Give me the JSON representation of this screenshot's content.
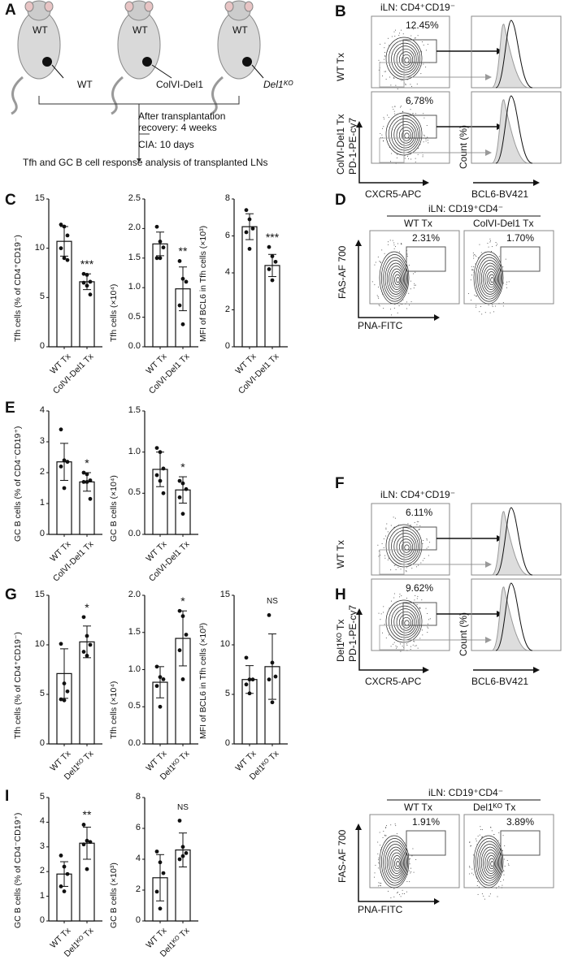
{
  "panel_labels": [
    "A",
    "B",
    "C",
    "D",
    "E",
    "F",
    "G",
    "H",
    "I"
  ],
  "panel_a": {
    "mouse_label": "WT",
    "donors": [
      "WT",
      "ColVI-Del1",
      "Del1ᴷᴼ"
    ],
    "step1": "After transplantation",
    "step2": "recovery: 4 weeks",
    "step3": "CIA: 10 days",
    "caption": "Tfh and GC B cell response analysis of transplanted LNs"
  },
  "panel_b": {
    "title": "iLN: CD4⁺CD19⁻",
    "row1": "WT Tx",
    "row2": "ColVI-Del1 Tx",
    "yaxis": "PD-1-PE-cy7",
    "xaxis": "CXCR5-APC",
    "hist_y": "Count (%)",
    "hist_x": "BCL6-BV421",
    "pct1": "12.45%",
    "pct2": "6.78%"
  },
  "panel_d": {
    "title": "iLN: CD19⁺CD4⁻",
    "col1": "WT Tx",
    "col2": "ColVI-Del1 Tx",
    "yaxis": "FAS-AF 700",
    "xaxis": "PNA-FITC",
    "pct1": "2.31%",
    "pct2": "1.70%"
  },
  "panel_f": {
    "title": "iLN: CD4⁺CD19⁻",
    "row1": "WT Tx",
    "row2": "Del1ᴷᴼ Tx",
    "yaxis": "PD-1-PE-cy7",
    "xaxis": "CXCR5-APC",
    "hist_y": "Count (%)",
    "hist_x": "BCL6-BV421",
    "pct1": "6.11%",
    "pct2": "9.62%"
  },
  "panel_h": {
    "title": "iLN: CD19⁺CD4⁻",
    "col1": "WT Tx",
    "col2": "Del1ᴷᴼ Tx",
    "yaxis": "FAS-AF 700",
    "xaxis": "PNA-FITC",
    "pct1": "1.91%",
    "pct2": "3.89%"
  },
  "chart_data": [
    {
      "panel": "C",
      "type": "bar",
      "ylabel": "Tfh cells (% of CD4⁺CD19⁻)",
      "ylim": [
        0,
        15
      ],
      "yticks": [
        "0",
        "5",
        "10",
        "15"
      ],
      "tickvals": [
        0,
        5,
        10,
        15
      ],
      "categories": [
        "WT Tx",
        "ColVI-Del1 Tx"
      ],
      "means": [
        10.7,
        6.6
      ],
      "sd": [
        1.5,
        0.8
      ],
      "points": [
        [
          12.4,
          12.2,
          11.3,
          10.0,
          9.0,
          8.8
        ],
        [
          7.4,
          7.3,
          6.6,
          6.5,
          6.2,
          5.3
        ]
      ],
      "sig": "***"
    },
    {
      "panel": "C",
      "type": "bar",
      "ylabel": "Tfh cells (×10⁴)",
      "ylim": [
        0,
        2.5
      ],
      "yticks": [
        "0.0",
        "0.5",
        "1.0",
        "1.5",
        "2.0",
        "2.5"
      ],
      "tickvals": [
        0,
        0.5,
        1,
        1.5,
        2,
        2.5
      ],
      "categories": [
        "WT Tx",
        "ColVI-Del1 Tx"
      ],
      "means": [
        1.74,
        0.98
      ],
      "sd": [
        0.2,
        0.37
      ],
      "points": [
        [
          2.03,
          1.78,
          1.68,
          1.5,
          1.5
        ],
        [
          1.45,
          1.15,
          1.1,
          0.7,
          0.38
        ]
      ],
      "sig": "**"
    },
    {
      "panel": "C",
      "type": "bar",
      "ylabel": "MFI of BCL6 in Tfh cells (×10³)",
      "ylim": [
        0,
        8
      ],
      "yticks": [
        "0",
        "2",
        "4",
        "6",
        "8"
      ],
      "tickvals": [
        0,
        2,
        4,
        6,
        8
      ],
      "categories": [
        "WT Tx",
        "ColVI-Del1 Tx"
      ],
      "means": [
        6.5,
        4.4
      ],
      "sd": [
        0.7,
        0.6
      ],
      "points": [
        [
          7.4,
          6.9,
          6.4,
          6.2,
          5.3
        ],
        [
          5.4,
          4.9,
          4.6,
          4.2,
          3.6
        ]
      ],
      "sig": "***"
    },
    {
      "panel": "E",
      "type": "bar",
      "ylabel": "GC B cells (% of CD4⁻CD19⁺)",
      "ylim": [
        0,
        4
      ],
      "yticks": [
        "0",
        "1",
        "2",
        "3",
        "4"
      ],
      "tickvals": [
        0,
        1,
        2,
        3,
        4
      ],
      "categories": [
        "WT Tx",
        "ColVI-Del1 Tx"
      ],
      "means": [
        2.35,
        1.7
      ],
      "sd": [
        0.6,
        0.3
      ],
      "points": [
        [
          3.4,
          2.4,
          2.35,
          2.2,
          1.5
        ],
        [
          2.0,
          1.95,
          1.75,
          1.7,
          1.7,
          1.15
        ]
      ],
      "sig": "*"
    },
    {
      "panel": "E",
      "type": "bar",
      "ylabel": "GC B cells (×10⁴)",
      "ylim": [
        0,
        1.5
      ],
      "yticks": [
        "0.0",
        "0.5",
        "1.0",
        "1.5"
      ],
      "tickvals": [
        0,
        0.5,
        1,
        1.5
      ],
      "categories": [
        "WT Tx",
        "ColVI-Del1 Tx"
      ],
      "means": [
        0.79,
        0.54
      ],
      "sd": [
        0.21,
        0.16
      ],
      "points": [
        [
          1.05,
          1.0,
          0.8,
          0.72,
          0.65,
          0.5
        ],
        [
          0.65,
          0.62,
          0.55,
          0.45,
          0.25
        ]
      ],
      "sig": "*"
    },
    {
      "panel": "G",
      "type": "bar",
      "ylabel": "Tfh cells (% of CD4⁺CD19⁻)",
      "ylim": [
        0,
        15
      ],
      "yticks": [
        "0",
        "5",
        "10",
        "15"
      ],
      "tickvals": [
        0,
        5,
        10,
        15
      ],
      "categories": [
        "WT Tx",
        "Del1ᴷᴼ Tx"
      ],
      "means": [
        7.1,
        10.3
      ],
      "sd": [
        2.5,
        1.6
      ],
      "points": [
        [
          10.1,
          6.1,
          5.3,
          4.5,
          4.4
        ],
        [
          12.8,
          10.9,
          10.0,
          9.3,
          8.9
        ]
      ],
      "sig": "*"
    },
    {
      "panel": "G",
      "type": "bar",
      "ylabel": "Tfh cells (×10⁴)",
      "ylim": [
        0,
        2.0
      ],
      "yticks": [
        "0.0",
        "0.5",
        "1.0",
        "1.5",
        "2.0"
      ],
      "tickvals": [
        0,
        0.5,
        1,
        1.5,
        2
      ],
      "categories": [
        "WT Tx",
        "Del1ᴷᴼ Tx"
      ],
      "means": [
        0.83,
        1.42
      ],
      "sd": [
        0.21,
        0.37
      ],
      "points": [
        [
          1.04,
          0.9,
          0.87,
          0.78,
          0.5
        ],
        [
          1.79,
          1.72,
          1.47,
          1.26,
          0.87
        ]
      ],
      "sig": "*"
    },
    {
      "panel": "G",
      "type": "bar",
      "ylabel": "MFI of BCL6 in Tfh cells (×10³)",
      "ylim": [
        0,
        15
      ],
      "yticks": [
        "0",
        "5",
        "10",
        "15"
      ],
      "tickvals": [
        0,
        5,
        10,
        15
      ],
      "categories": [
        "WT Tx",
        "Del1ᴷᴼ Tx"
      ],
      "means": [
        6.5,
        7.8
      ],
      "sd": [
        1.4,
        3.3
      ],
      "points": [
        [
          8.7,
          6.5,
          6.5,
          6.0,
          5.1
        ],
        [
          13.0,
          8.2,
          6.8,
          6.5,
          4.2
        ]
      ],
      "sig": "NS"
    },
    {
      "panel": "I",
      "type": "bar",
      "ylabel": "GC B cells (% of CD4⁻CD19⁺)",
      "ylim": [
        0,
        5
      ],
      "yticks": [
        "0",
        "1",
        "2",
        "3",
        "4",
        "5"
      ],
      "tickvals": [
        0,
        1,
        2,
        3,
        4,
        5
      ],
      "categories": [
        "WT Tx",
        "Del1ᴷᴼ Tx"
      ],
      "means": [
        1.9,
        3.15
      ],
      "sd": [
        0.5,
        0.65
      ],
      "points": [
        [
          2.65,
          2.2,
          1.9,
          1.4,
          1.2
        ],
        [
          3.9,
          3.25,
          3.2,
          3.1,
          2.1
        ]
      ],
      "sig": "**"
    },
    {
      "panel": "I",
      "type": "bar",
      "ylabel": "GC B cells (×10³)",
      "ylim": [
        0,
        8
      ],
      "yticks": [
        "0",
        "2",
        "4",
        "6",
        "8"
      ],
      "tickvals": [
        0,
        2,
        4,
        6,
        8
      ],
      "categories": [
        "WT Tx",
        "Del1ᴷᴼ Tx"
      ],
      "means": [
        2.8,
        4.6
      ],
      "sd": [
        1.5,
        1.1
      ],
      "points": [
        [
          4.5,
          3.8,
          3.1,
          1.9,
          0.8
        ],
        [
          6.5,
          4.8,
          4.4,
          4.0,
          4.2
        ]
      ],
      "sig": "NS"
    }
  ]
}
